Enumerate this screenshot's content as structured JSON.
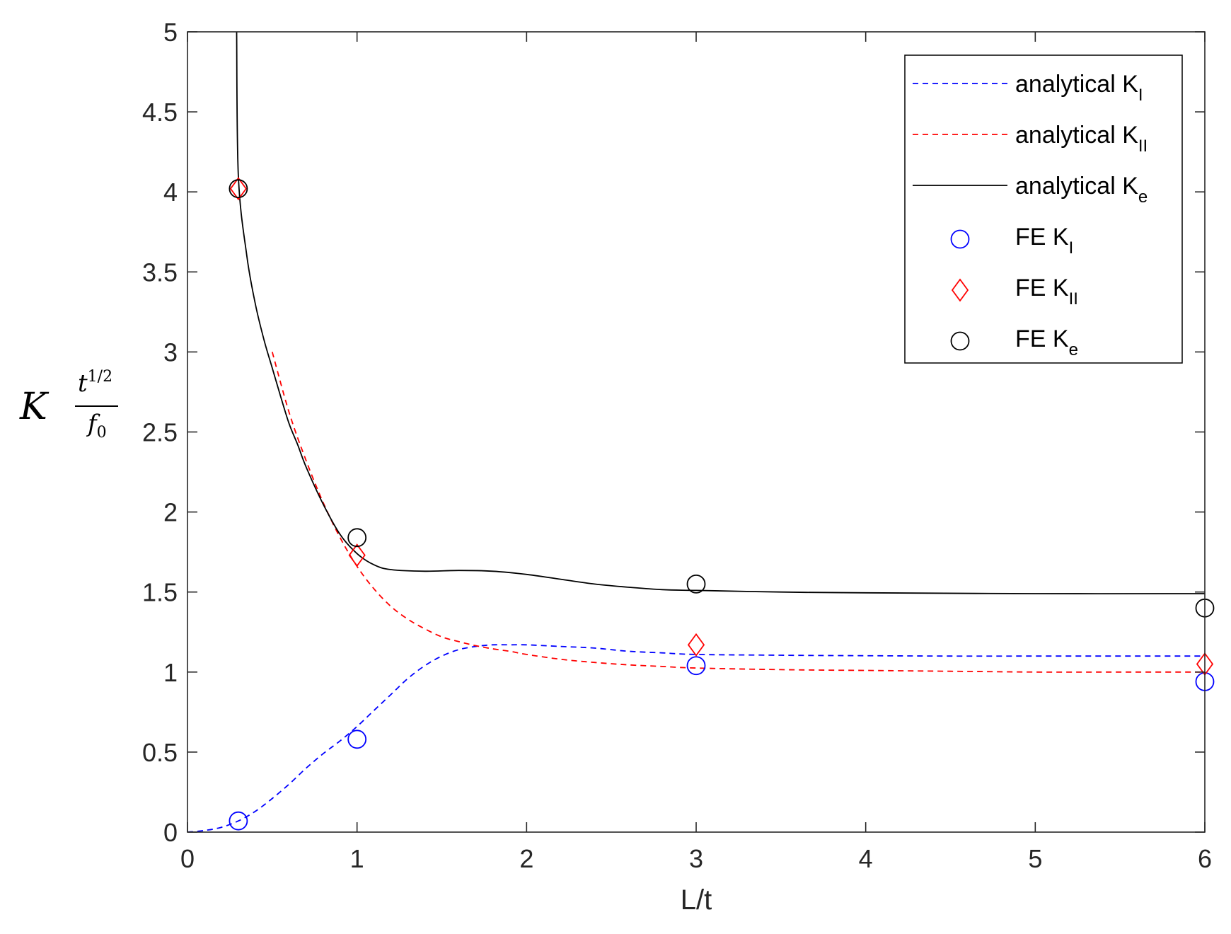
{
  "chart_data": {
    "type": "line",
    "xlabel": "L/t",
    "ylabel": {
      "base": "K",
      "numerator_base": "t",
      "numerator_exp": "1/2",
      "denominator_base": "f",
      "denominator_sub": "0"
    },
    "xlim": [
      0,
      6
    ],
    "ylim": [
      0,
      5
    ],
    "xticks": [
      0,
      1,
      2,
      3,
      4,
      5,
      6
    ],
    "yticks": [
      0,
      0.5,
      1,
      1.5,
      2,
      2.5,
      3,
      3.5,
      4,
      4.5,
      5
    ],
    "xtick_labels": [
      "0",
      "1",
      "2",
      "3",
      "4",
      "5",
      "6"
    ],
    "ytick_labels": [
      "0",
      "0.5",
      "1",
      "1.5",
      "2",
      "2.5",
      "3",
      "3.5",
      "4",
      "4.5",
      "5"
    ],
    "grid": false,
    "legend_position": "top-right",
    "series": [
      {
        "name": "analytical K",
        "sub": "I",
        "style": "dashed",
        "marker": "none",
        "color": "#0000ff",
        "x": [
          0.0,
          0.1,
          0.2,
          0.3,
          0.4,
          0.5,
          0.6,
          0.7,
          0.8,
          0.9,
          1.0,
          1.1,
          1.2,
          1.3,
          1.4,
          1.5,
          1.6,
          1.7,
          1.8,
          1.9,
          2.0,
          2.2,
          2.4,
          2.6,
          2.8,
          3.0,
          3.5,
          4.0,
          4.5,
          5.0,
          5.5,
          6.0
        ],
        "y": [
          0.0,
          0.01,
          0.03,
          0.07,
          0.13,
          0.21,
          0.3,
          0.4,
          0.49,
          0.57,
          0.66,
          0.76,
          0.86,
          0.96,
          1.04,
          1.1,
          1.14,
          1.16,
          1.17,
          1.17,
          1.17,
          1.16,
          1.15,
          1.13,
          1.12,
          1.11,
          1.105,
          1.102,
          1.1,
          1.1,
          1.1,
          1.1
        ]
      },
      {
        "name": "analytical K",
        "sub": "II",
        "style": "dashed",
        "marker": "none",
        "color": "#ff0000",
        "x": [
          0.5,
          0.6,
          0.7,
          0.8,
          0.9,
          1.0,
          1.1,
          1.2,
          1.3,
          1.4,
          1.5,
          1.6,
          1.7,
          1.8,
          1.9,
          2.0,
          2.2,
          2.4,
          2.6,
          2.8,
          3.0,
          3.5,
          4.0,
          4.5,
          5.0,
          5.5,
          6.0
        ],
        "y": [
          3.0,
          2.62,
          2.32,
          2.06,
          1.84,
          1.66,
          1.52,
          1.41,
          1.33,
          1.27,
          1.22,
          1.19,
          1.165,
          1.145,
          1.13,
          1.11,
          1.08,
          1.06,
          1.045,
          1.035,
          1.025,
          1.015,
          1.01,
          1.005,
          1.0,
          1.0,
          1.0
        ]
      },
      {
        "name": "analytical K",
        "sub": "e",
        "style": "solid",
        "marker": "none",
        "color": "#000000",
        "x": [
          0.29,
          0.3,
          0.35,
          0.4,
          0.45,
          0.5,
          0.55,
          0.6,
          0.65,
          0.7,
          0.8,
          0.9,
          1.0,
          1.1,
          1.2,
          1.4,
          1.6,
          1.8,
          2.0,
          2.2,
          2.4,
          2.6,
          2.8,
          3.0,
          3.5,
          4.0,
          5.0,
          6.0
        ],
        "y": [
          5.0,
          4.1,
          3.6,
          3.3,
          3.08,
          2.9,
          2.72,
          2.55,
          2.42,
          2.28,
          2.05,
          1.86,
          1.74,
          1.67,
          1.64,
          1.63,
          1.635,
          1.63,
          1.61,
          1.58,
          1.55,
          1.53,
          1.515,
          1.51,
          1.5,
          1.495,
          1.49,
          1.49
        ]
      },
      {
        "name": "FE K",
        "sub": "I",
        "style": "none",
        "marker": "circle",
        "color": "#0000ff",
        "x": [
          0.3,
          1,
          3,
          6
        ],
        "y": [
          0.07,
          0.58,
          1.04,
          0.94
        ]
      },
      {
        "name": "FE K",
        "sub": "II",
        "style": "none",
        "marker": "diamond",
        "color": "#ff0000",
        "x": [
          0.3,
          1,
          3,
          6
        ],
        "y": [
          4.02,
          1.73,
          1.17,
          1.05
        ]
      },
      {
        "name": "FE K",
        "sub": "e",
        "style": "none",
        "marker": "circle",
        "color": "#000000",
        "x": [
          0.3,
          1,
          3,
          6
        ],
        "y": [
          4.02,
          1.84,
          1.55,
          1.4
        ]
      }
    ]
  }
}
